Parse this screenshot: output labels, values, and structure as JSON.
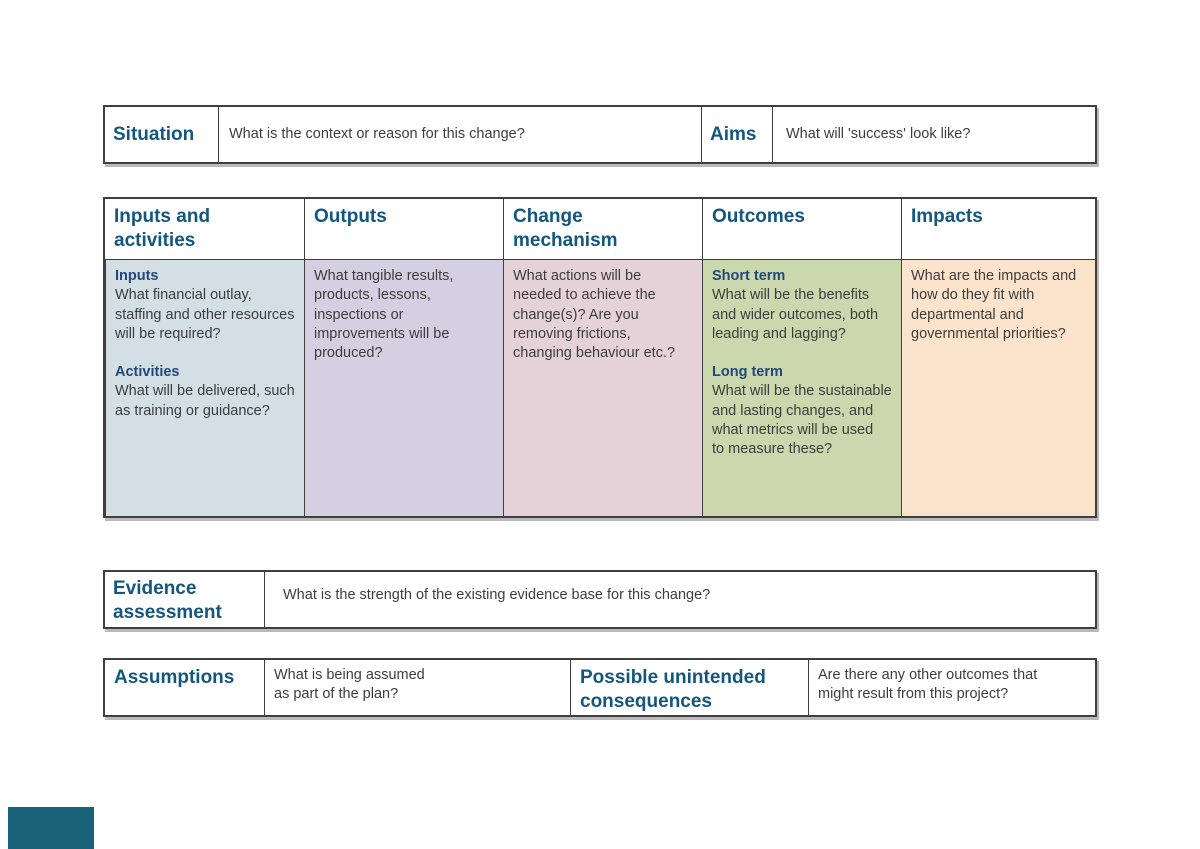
{
  "situation_row": {
    "label": "Situation",
    "question": "What is the context or reason for this change?",
    "aims_label": "Aims",
    "aims_question": "What will 'success' look like?"
  },
  "logic_model": {
    "columns": [
      {
        "header": "Inputs and activities",
        "bg": "#d3dfe4",
        "sub1": "Inputs",
        "text1": "What financial outlay, staffing and other resources will be required?",
        "sub2": "Activities",
        "text2": "What will be delivered, such as training or guidance?"
      },
      {
        "header": "Outputs",
        "bg": "#d5d0e1",
        "text1": "What tangible results, products, lessons, inspections or improvements will be produced?"
      },
      {
        "header": "Change mechanism",
        "bg": "#e5d2d9",
        "text1": "What actions will be needed to achieve the change(s)? Are you removing frictions, changing behaviour etc.?"
      },
      {
        "header": "Outcomes",
        "bg": "#cbd8ae",
        "sub1": "Short term",
        "text1": "What will be the benefits and wider outcomes, both leading and lagging?",
        "sub2": "Long term",
        "text2": "What will be the sustainable and lasting changes, and what metrics will be used\nto measure these?"
      },
      {
        "header": "Impacts",
        "bg": "#fbe4cb",
        "text1": "What are the impacts and how do they fit with departmental and governmental priorities?"
      }
    ]
  },
  "evidence_row": {
    "label": "Evidence assessment",
    "question": "What is the strength of the existing evidence base for this change?"
  },
  "assumptions_row": {
    "label": "Assumptions",
    "question": "What is being assumed\nas part of the plan?",
    "consequences_label": "Possible unintended consequences",
    "consequences_question": "Are there any other outcomes that\nmight result from this project?"
  },
  "colors": {
    "heading_text": "#13567e",
    "subheading_text": "#23497c",
    "body_text": "#3d3d3d",
    "table_border": "#3f3f3f",
    "inputs_cell": "#d3dfe4",
    "outputs_cell": "#d5d0e1",
    "change_mechanism_cell": "#e5d2d9",
    "outcomes_cell": "#cbd8ae",
    "impacts_cell": "#fbe4cb",
    "corner_block": "#1a6278"
  }
}
